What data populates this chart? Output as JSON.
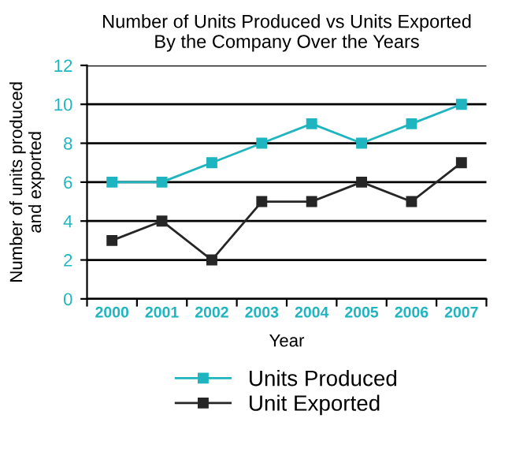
{
  "chart_data": {
    "type": "line",
    "title": "Number of Units Produced vs Units Exported\nBy the Company Over the Years",
    "xlabel": "Year",
    "ylabel": "Number of units produced\nand exported",
    "categories": [
      "2000",
      "2001",
      "2002",
      "2003",
      "2004",
      "2005",
      "2006",
      "2007"
    ],
    "series": [
      {
        "name": "Units Produced",
        "color": "#1fb5c0",
        "values": [
          6,
          6,
          7,
          8,
          9,
          8,
          9,
          10
        ]
      },
      {
        "name": "Unit Exported",
        "color": "#262626",
        "values": [
          3,
          4,
          2,
          5,
          5,
          6,
          5,
          7
        ]
      }
    ],
    "ylim": [
      0,
      12
    ],
    "yticks": [
      0,
      2,
      4,
      6,
      8,
      10,
      12
    ],
    "grid": "y",
    "legend": "bottom",
    "marker": "square",
    "line_style": "solid"
  }
}
